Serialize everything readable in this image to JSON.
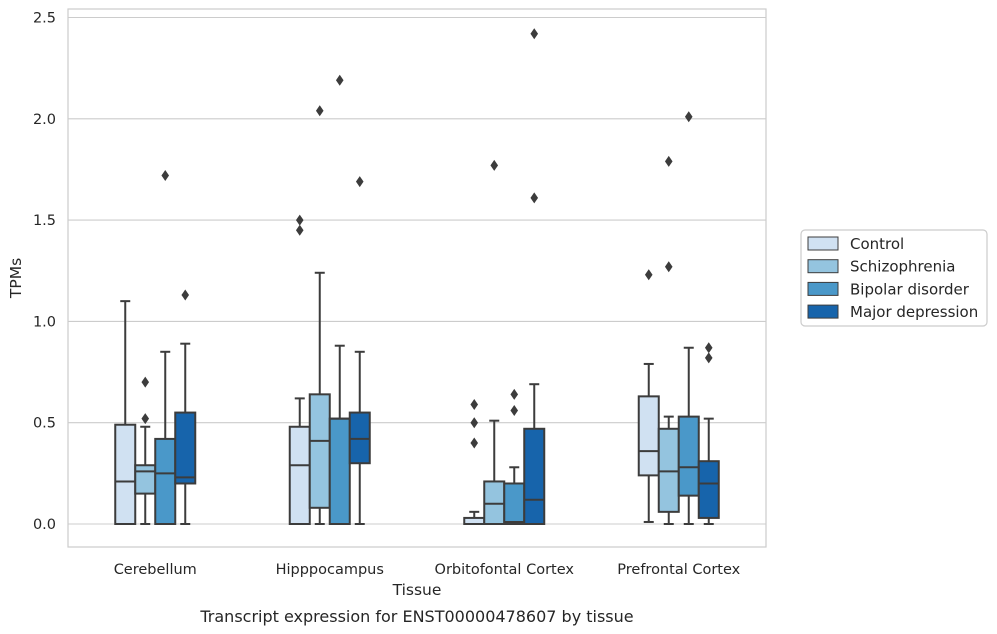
{
  "chart_data": {
    "type": "box",
    "xlabel": "Tissue",
    "ylabel": "TPMs",
    "caption": "Transcript expression for ENST00000478607 by tissue",
    "ylim": [
      -0.12,
      2.55
    ],
    "yticks": [
      "0.0",
      "0.5",
      "1.0",
      "1.5",
      "2.0",
      "2.5"
    ],
    "grid": true,
    "legend_position": "right",
    "categories": [
      "Cerebellum",
      "Hipppocampus",
      "Orbitofontal Cortex",
      "Prefrontal Cortex"
    ],
    "series": [
      {
        "name": "Control",
        "color": "#d0e1f2",
        "boxes": [
          {
            "whislo": 0.0,
            "q1": 0.0,
            "med": 0.21,
            "q3": 0.49,
            "whishi": 1.1,
            "fliers": []
          },
          {
            "whislo": 0.0,
            "q1": 0.0,
            "med": 0.29,
            "q3": 0.48,
            "whishi": 0.62,
            "fliers": [
              1.45,
              1.5
            ]
          },
          {
            "whislo": 0.0,
            "q1": 0.0,
            "med": 0.0,
            "q3": 0.03,
            "whishi": 0.06,
            "fliers": [
              0.4,
              0.5,
              0.59
            ]
          },
          {
            "whislo": 0.01,
            "q1": 0.24,
            "med": 0.36,
            "q3": 0.63,
            "whishi": 0.79,
            "fliers": [
              1.23
            ]
          }
        ]
      },
      {
        "name": "Schizophrenia",
        "color": "#94c4df",
        "boxes": [
          {
            "whislo": 0.0,
            "q1": 0.15,
            "med": 0.26,
            "q3": 0.29,
            "whishi": 0.48,
            "fliers": [
              0.52,
              0.7
            ]
          },
          {
            "whislo": 0.0,
            "q1": 0.08,
            "med": 0.41,
            "q3": 0.64,
            "whishi": 1.24,
            "fliers": [
              2.04
            ]
          },
          {
            "whislo": 0.0,
            "q1": 0.0,
            "med": 0.1,
            "q3": 0.21,
            "whishi": 0.51,
            "fliers": [
              1.77
            ]
          },
          {
            "whislo": 0.0,
            "q1": 0.06,
            "med": 0.26,
            "q3": 0.47,
            "whishi": 0.53,
            "fliers": [
              1.27,
              1.79
            ]
          }
        ]
      },
      {
        "name": "Bipolar disorder",
        "color": "#4a98c9",
        "boxes": [
          {
            "whislo": 0.0,
            "q1": 0.0,
            "med": 0.25,
            "q3": 0.42,
            "whishi": 0.85,
            "fliers": [
              1.72
            ]
          },
          {
            "whislo": 0.0,
            "q1": 0.0,
            "med": 0.52,
            "q3": 0.52,
            "whishi": 0.88,
            "fliers": [
              2.19
            ]
          },
          {
            "whislo": 0.0,
            "q1": 0.0,
            "med": 0.01,
            "q3": 0.2,
            "whishi": 0.28,
            "fliers": [
              0.56,
              0.64
            ]
          },
          {
            "whislo": 0.0,
            "q1": 0.14,
            "med": 0.28,
            "q3": 0.53,
            "whishi": 0.87,
            "fliers": [
              2.01
            ]
          }
        ]
      },
      {
        "name": "Major depression",
        "color": "#1764ab",
        "boxes": [
          {
            "whislo": 0.0,
            "q1": 0.2,
            "med": 0.23,
            "q3": 0.55,
            "whishi": 0.89,
            "fliers": [
              1.13
            ]
          },
          {
            "whislo": 0.0,
            "q1": 0.3,
            "med": 0.42,
            "q3": 0.55,
            "whishi": 0.85,
            "fliers": [
              1.69
            ]
          },
          {
            "whislo": 0.0,
            "q1": 0.0,
            "med": 0.12,
            "q3": 0.47,
            "whishi": 0.69,
            "fliers": [
              1.61,
              2.42
            ]
          },
          {
            "whislo": 0.0,
            "q1": 0.03,
            "med": 0.2,
            "q3": 0.31,
            "whishi": 0.52,
            "fliers": [
              0.82,
              0.87
            ]
          }
        ]
      }
    ]
  }
}
